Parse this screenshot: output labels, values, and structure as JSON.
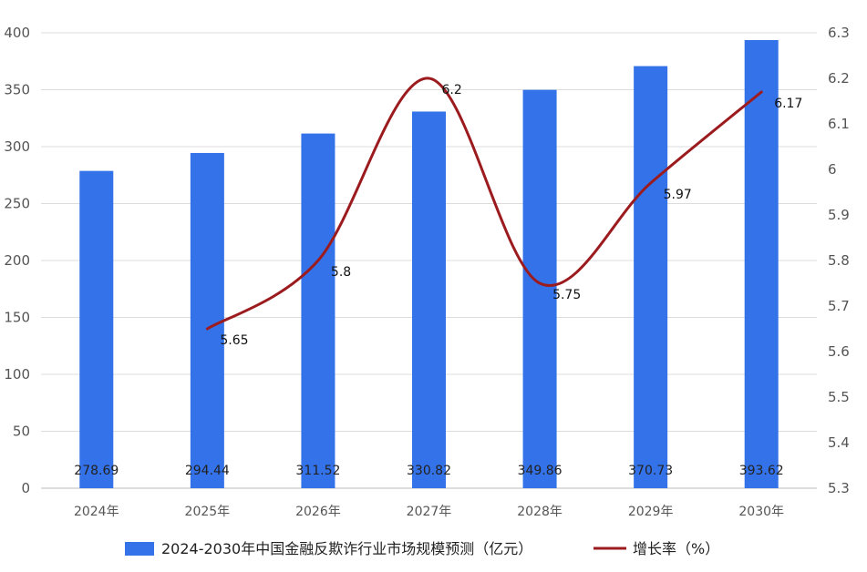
{
  "chart_data": {
    "type": "bar",
    "categories": [
      "2024年",
      "2025年",
      "2026年",
      "2027年",
      "2028年",
      "2029年",
      "2030年"
    ],
    "series": [
      {
        "name": "2024-2030年中国金融反欺诈行业市场规模预测（亿元）",
        "type": "bar",
        "axis": "left",
        "color": "#3372e8",
        "values": [
          278.69,
          294.44,
          311.52,
          330.82,
          349.86,
          370.73,
          393.62
        ],
        "labels": [
          "278.69",
          "294.44",
          "311.52",
          "330.82",
          "349.86",
          "370.73",
          "393.62"
        ]
      },
      {
        "name": "增长率（%）",
        "type": "line",
        "axis": "right",
        "color": "#9b1b1e",
        "smooth": true,
        "values": [
          null,
          5.65,
          5.8,
          6.2,
          5.75,
          5.97,
          6.17
        ],
        "labels": [
          "",
          "5.65",
          "5.8",
          "6.2",
          "5.75",
          "5.97",
          "6.17"
        ]
      }
    ],
    "y_left": {
      "min": 0,
      "max": 400,
      "ticks": [
        "0",
        "50",
        "100",
        "150",
        "200",
        "250",
        "300",
        "350",
        "400"
      ]
    },
    "y_right": {
      "min": 5.3,
      "max": 6.3,
      "ticks": [
        "5.3",
        "5.4",
        "5.5",
        "5.6",
        "5.7",
        "5.8",
        "5.9",
        "6",
        "6.1",
        "6.2",
        "6.3"
      ]
    },
    "grid": true,
    "legend": "bottom"
  }
}
